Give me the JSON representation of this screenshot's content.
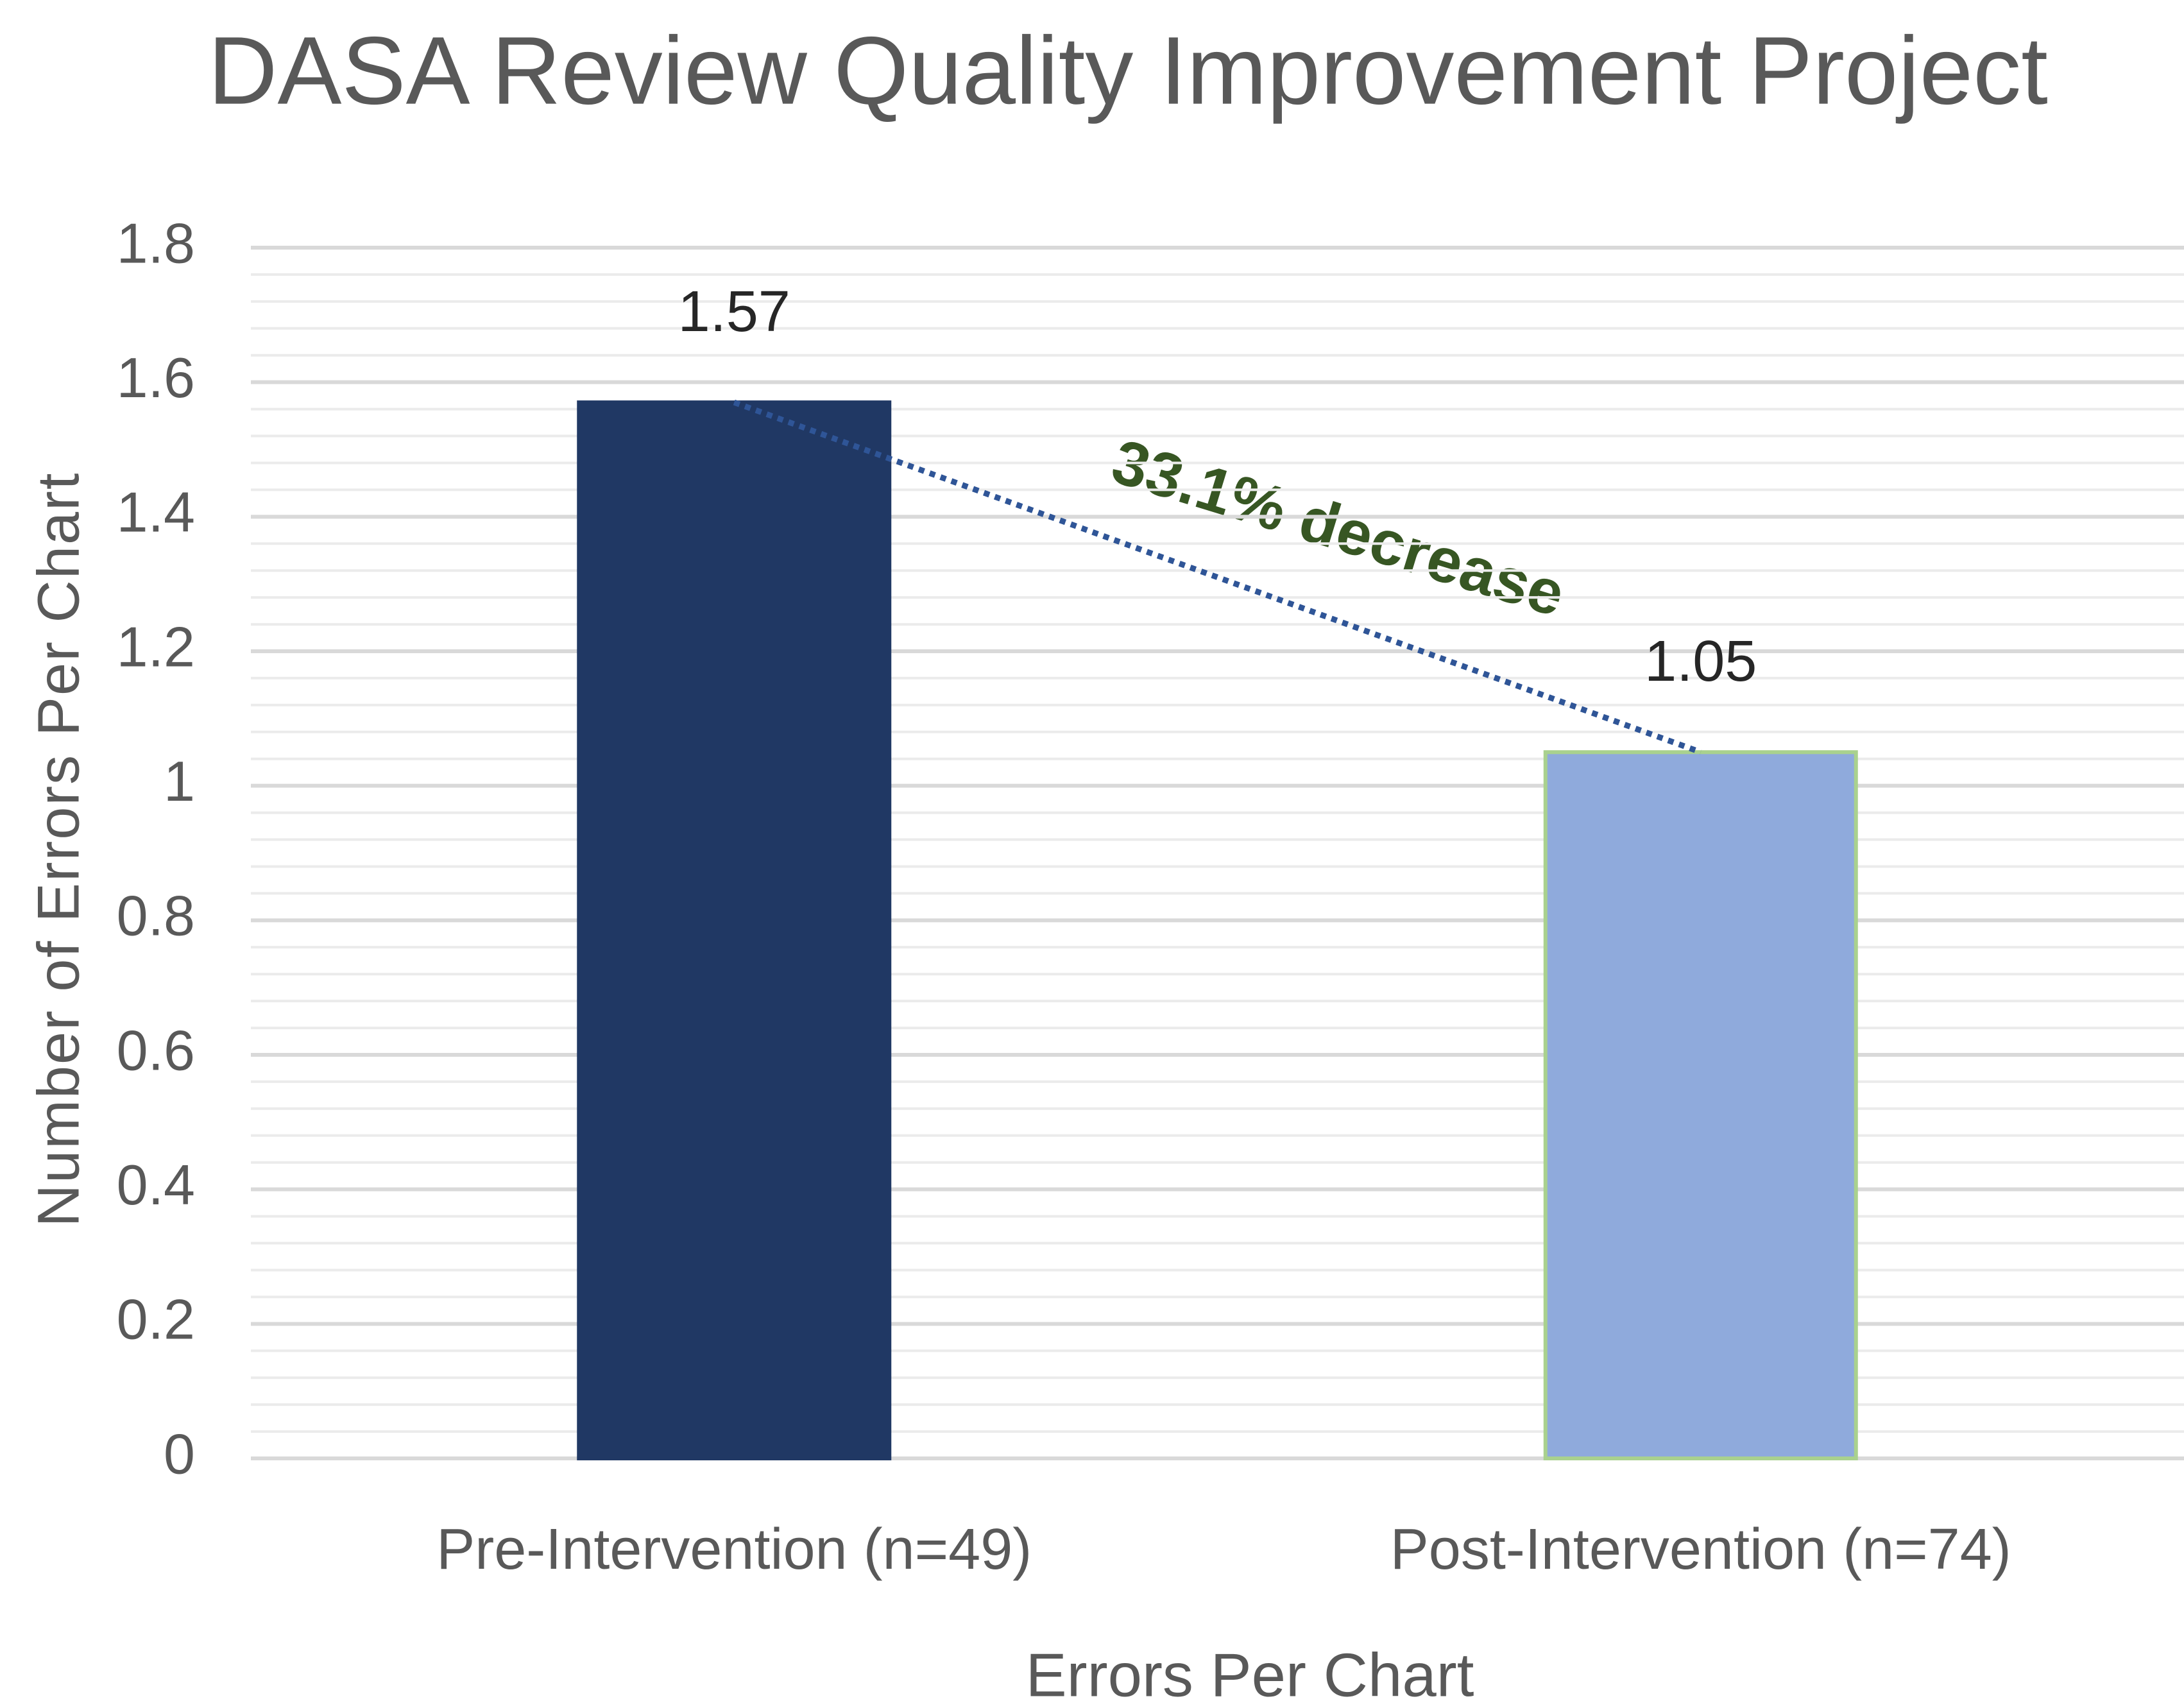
{
  "chart_data": {
    "type": "bar",
    "title": "DASA Review Quality Improvement Project",
    "xlabel": "Errors Per Chart",
    "ylabel": "Number of Errors Per Chart",
    "categories": [
      "Pre-Intervention (n=49)",
      "Post-Intervention (n=74)"
    ],
    "values": [
      1.57,
      1.05
    ],
    "colors": [
      "#203864",
      "#8faadc"
    ],
    "edge_colors": [
      "#203864",
      "#a9d18e"
    ],
    "ylim": [
      0,
      1.8
    ],
    "yticks": [
      0,
      0.2,
      0.4,
      0.6,
      0.8,
      1,
      1.2,
      1.4,
      1.6,
      1.8
    ],
    "grid": true,
    "minor_grid": true,
    "trendline": true,
    "annotation": "33.1% decrease"
  }
}
